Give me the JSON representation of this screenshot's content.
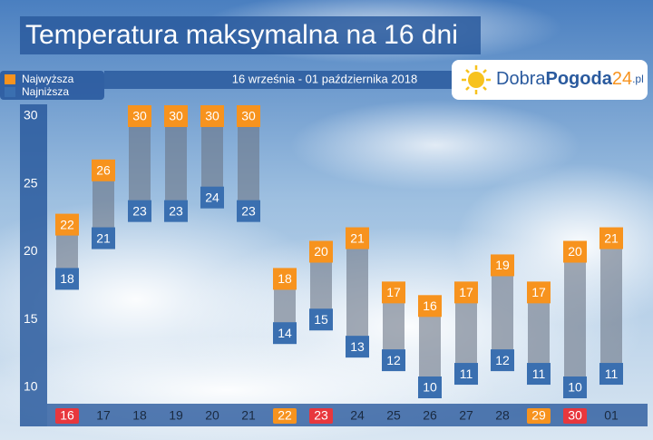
{
  "chart_data": {
    "type": "range-bar",
    "title": "Temperatura maksymalna na 16 dni",
    "subtitle": "16 września - 01 października 2018",
    "logo": {
      "brand": "Dobra",
      "brand_bold": "Pogoda",
      "number": "24",
      "domain": ".pl"
    },
    "categories": [
      "16",
      "17",
      "18",
      "19",
      "20",
      "21",
      "22",
      "23",
      "24",
      "25",
      "26",
      "27",
      "28",
      "29",
      "30",
      "01"
    ],
    "category_colors": [
      "#e8373d",
      null,
      null,
      null,
      null,
      null,
      "#f7931e",
      "#e8373d",
      null,
      null,
      null,
      null,
      null,
      "#f7931e",
      "#e8373d",
      null
    ],
    "series": [
      {
        "name": "Najwyższa",
        "color": "#f7931e",
        "values": [
          22,
          26,
          30,
          30,
          30,
          30,
          18,
          20,
          21,
          17,
          16,
          17,
          19,
          17,
          20,
          21
        ]
      },
      {
        "name": "Najniższa",
        "color": "#3a6fb0",
        "values": [
          18,
          21,
          23,
          23,
          24,
          23,
          14,
          15,
          13,
          12,
          10,
          11,
          12,
          11,
          10,
          11
        ]
      }
    ],
    "ylim": [
      10,
      30
    ],
    "yticks": [
      10,
      15,
      20,
      25,
      30
    ]
  }
}
